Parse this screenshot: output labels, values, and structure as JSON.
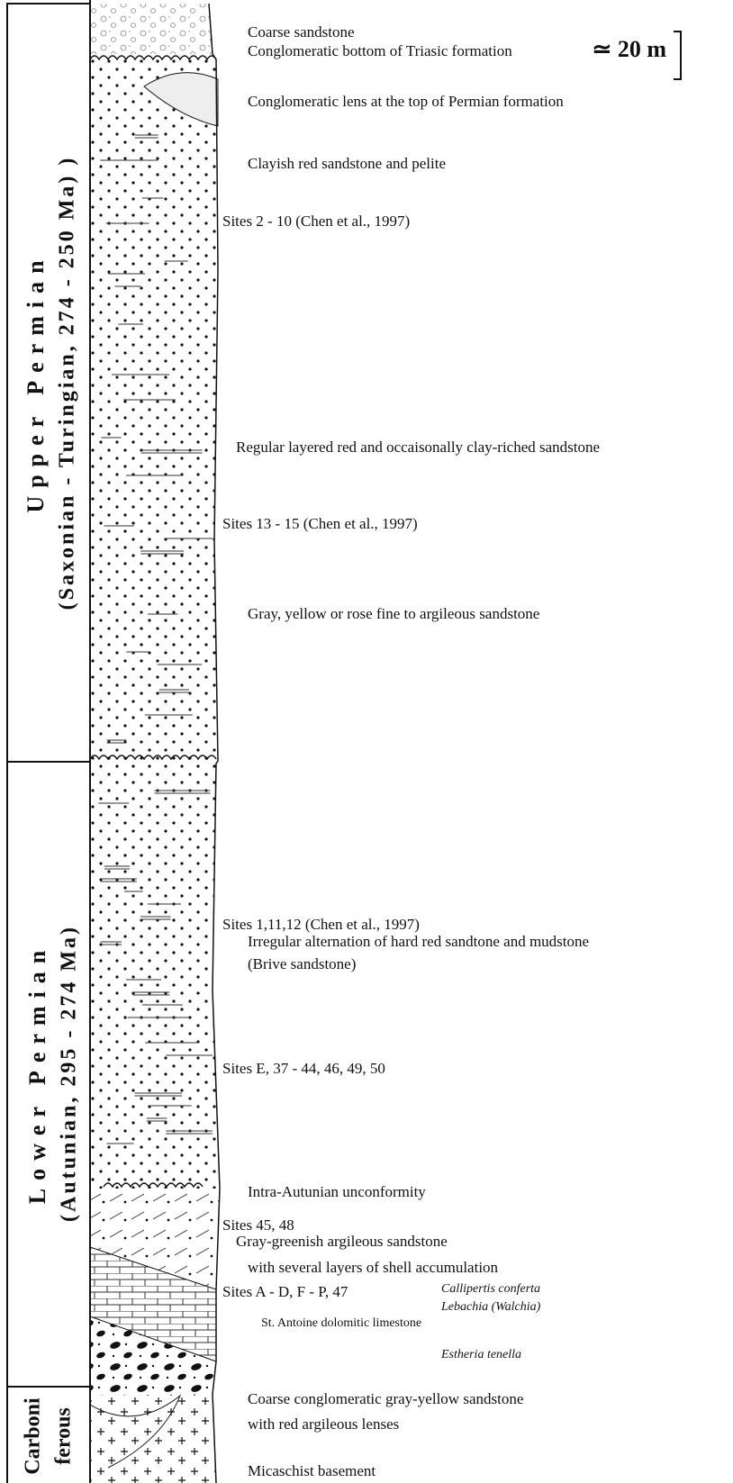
{
  "periods": [
    {
      "name": "Upper Permian",
      "subtitle": "(Saxonian - Turingian, 274 - 250 Ma) )"
    },
    {
      "name": "Lower Permian",
      "subtitle": "(Autunian, 295 - 274 Ma)"
    },
    {
      "name": "Carboni",
      "subtitle": "ferous"
    }
  ],
  "scale": "≃ 20 m",
  "annotations": [
    "Coarse sandstone",
    "Conglomeratic bottom of Triasic formation",
    "Conglomeratic lens at the top of Permian formation",
    "Clayish red sandstone and pelite",
    "Sites 2 - 10 (Chen et al., 1997)",
    "Regular layered red and occaisonally clay-riched sandstone",
    "Sites 13 - 15 (Chen et al., 1997)",
    "Gray, yellow or rose fine to argileous sandstone",
    "Sites 1,11,12 (Chen et al., 1997)",
    "Irregular alternation of hard red sandtone and mudstone",
    "(Brive sandstone)",
    "Sites E, 37 - 44, 46, 49, 50",
    "Intra-Autunian unconformity",
    "Sites 45, 48",
    "Gray-greenish argileous sandstone",
    "with several layers of shell accumulation",
    "Sites A - D, F - P, 47",
    "Callipertis conferta",
    "Lebachia (Walchia)",
    "St. Antoine dolomitic limestone",
    "Estheria tenella",
    "Coarse conglomeratic gray-yellow sandstone",
    "with red argileous lenses",
    "Micaschist basement"
  ]
}
